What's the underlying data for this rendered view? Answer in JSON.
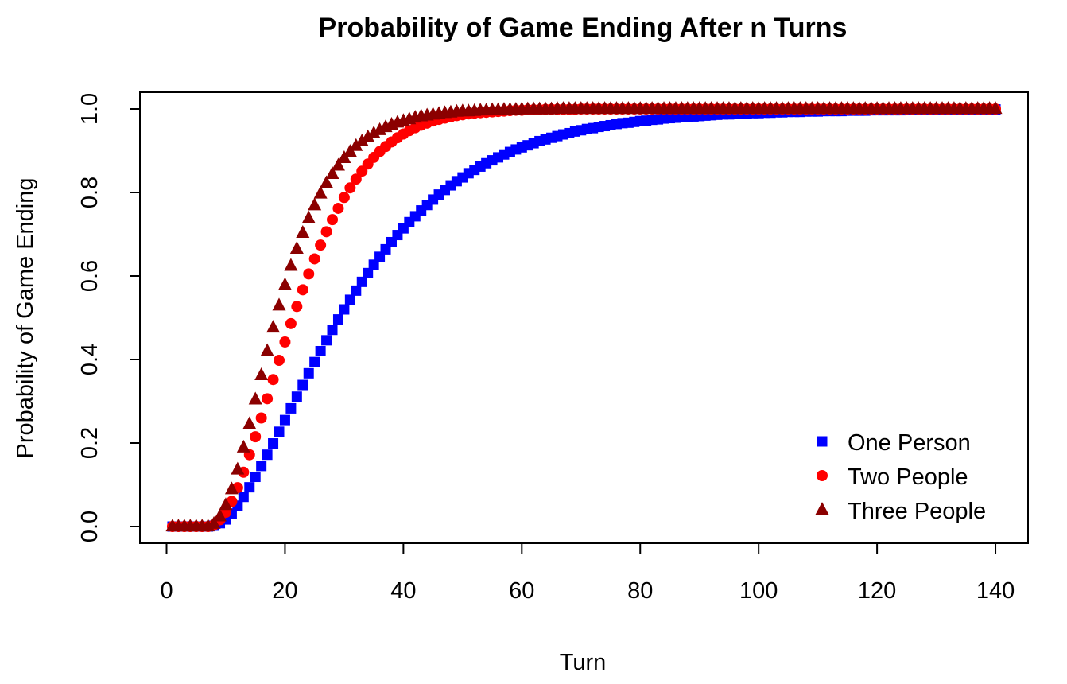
{
  "chart_data": {
    "type": "scatter",
    "title": "Probability of Game Ending After n Turns",
    "xlabel": "Turn",
    "ylabel": "Probability of Game Ending",
    "xlim": [
      -4.5,
      145.5
    ],
    "ylim": [
      -0.04,
      1.04
    ],
    "x_ticks": [
      0,
      20,
      40,
      60,
      80,
      100,
      120,
      140
    ],
    "y_ticks": [
      0.0,
      0.2,
      0.4,
      0.6,
      0.8,
      1.0
    ],
    "x_tick_labels": [
      "0",
      "20",
      "40",
      "60",
      "80",
      "100",
      "120",
      "140"
    ],
    "y_tick_labels": [
      "0.0",
      "0.2",
      "0.4",
      "0.6",
      "0.8",
      "1.0"
    ],
    "x": [
      1,
      2,
      3,
      4,
      5,
      6,
      7,
      8,
      9,
      10,
      11,
      12,
      13,
      14,
      15,
      16,
      17,
      18,
      19,
      20,
      21,
      22,
      23,
      24,
      25,
      26,
      27,
      28,
      29,
      30,
      31,
      32,
      33,
      34,
      35,
      36,
      37,
      38,
      39,
      40,
      41,
      42,
      43,
      44,
      45,
      46,
      47,
      48,
      49,
      50,
      51,
      52,
      53,
      54,
      55,
      56,
      57,
      58,
      59,
      60,
      61,
      62,
      63,
      64,
      65,
      66,
      67,
      68,
      69,
      70,
      71,
      72,
      73,
      74,
      75,
      76,
      77,
      78,
      79,
      80,
      81,
      82,
      83,
      84,
      85,
      86,
      87,
      88,
      89,
      90,
      91,
      92,
      93,
      94,
      95,
      96,
      97,
      98,
      99,
      100,
      101,
      102,
      103,
      104,
      105,
      106,
      107,
      108,
      109,
      110,
      111,
      112,
      113,
      114,
      115,
      116,
      117,
      118,
      119,
      120,
      121,
      122,
      123,
      124,
      125,
      126,
      127,
      128,
      129,
      130,
      131,
      132,
      133,
      134,
      135,
      136,
      137,
      138,
      139,
      140
    ],
    "series": [
      {
        "name": "One Person",
        "color": "#0000FF",
        "marker": "square",
        "values": [
          0.0,
          0.0,
          0.0,
          0.0,
          0.0,
          0.0,
          0.0,
          0.002,
          0.008,
          0.017,
          0.031,
          0.05,
          0.071,
          0.094,
          0.119,
          0.145,
          0.172,
          0.199,
          0.227,
          0.255,
          0.283,
          0.311,
          0.339,
          0.367,
          0.394,
          0.42,
          0.446,
          0.471,
          0.496,
          0.52,
          0.543,
          0.565,
          0.586,
          0.607,
          0.627,
          0.646,
          0.664,
          0.681,
          0.698,
          0.714,
          0.729,
          0.743,
          0.757,
          0.77,
          0.783,
          0.795,
          0.806,
          0.817,
          0.827,
          0.836,
          0.846,
          0.854,
          0.862,
          0.87,
          0.877,
          0.884,
          0.891,
          0.897,
          0.903,
          0.908,
          0.913,
          0.918,
          0.923,
          0.927,
          0.931,
          0.935,
          0.939,
          0.942,
          0.946,
          0.949,
          0.952,
          0.954,
          0.957,
          0.959,
          0.961,
          0.964,
          0.966,
          0.967,
          0.969,
          0.971,
          0.972,
          0.974,
          0.975,
          0.977,
          0.978,
          0.979,
          0.98,
          0.981,
          0.982,
          0.983,
          0.984,
          0.985,
          0.986,
          0.987,
          0.987,
          0.988,
          0.989,
          0.989,
          0.99,
          0.99,
          0.991,
          0.991,
          0.992,
          0.992,
          0.993,
          0.993,
          0.993,
          0.994,
          0.994,
          0.994,
          0.995,
          0.995,
          0.995,
          0.995,
          0.996,
          0.996,
          0.996,
          0.996,
          0.997,
          0.997,
          0.997,
          0.997,
          0.997,
          0.997,
          0.998,
          0.998,
          0.998,
          0.998,
          0.998,
          0.998,
          0.998,
          0.998,
          0.999,
          0.999,
          0.999,
          0.999,
          0.999,
          0.999,
          0.999,
          0.999
        ]
      },
      {
        "name": "Two People",
        "color": "#FF0000",
        "marker": "circle",
        "values": [
          0.0,
          0.0,
          0.0,
          0.0,
          0.0,
          0.0,
          0.0,
          0.004,
          0.016,
          0.034,
          0.06,
          0.093,
          0.13,
          0.172,
          0.215,
          0.26,
          0.306,
          0.352,
          0.398,
          0.442,
          0.486,
          0.527,
          0.567,
          0.605,
          0.641,
          0.674,
          0.706,
          0.735,
          0.762,
          0.788,
          0.811,
          0.832,
          0.851,
          0.868,
          0.884,
          0.898,
          0.91,
          0.921,
          0.931,
          0.94,
          0.948,
          0.955,
          0.961,
          0.966,
          0.971,
          0.975,
          0.978,
          0.981,
          0.984,
          0.986,
          0.988,
          0.99,
          0.991,
          0.992,
          0.993,
          0.994,
          0.995,
          0.996,
          0.997,
          0.997,
          0.998,
          0.998,
          0.998,
          0.999,
          0.999,
          0.999,
          0.999,
          0.999,
          0.999,
          1.0,
          1.0,
          1.0,
          1.0,
          1.0,
          1.0,
          1.0,
          1.0,
          1.0,
          1.0,
          1.0,
          1.0,
          1.0,
          1.0,
          1.0,
          1.0,
          1.0,
          1.0,
          1.0,
          1.0,
          1.0,
          1.0,
          1.0,
          1.0,
          1.0,
          1.0,
          1.0,
          1.0,
          1.0,
          1.0,
          1.0,
          1.0,
          1.0,
          1.0,
          1.0,
          1.0,
          1.0,
          1.0,
          1.0,
          1.0,
          1.0,
          1.0,
          1.0,
          1.0,
          1.0,
          1.0,
          1.0,
          1.0,
          1.0,
          1.0,
          1.0,
          1.0,
          1.0,
          1.0,
          1.0,
          1.0,
          1.0,
          1.0,
          1.0,
          1.0,
          1.0,
          1.0,
          1.0,
          1.0,
          1.0,
          1.0,
          1.0,
          1.0,
          1.0,
          1.0,
          1.0
        ]
      },
      {
        "name": "Three People",
        "color": "#8B0000",
        "marker": "triangle",
        "values": [
          0.0,
          0.0,
          0.0,
          0.0,
          0.0,
          0.0,
          0.0,
          0.006,
          0.024,
          0.051,
          0.089,
          0.136,
          0.189,
          0.245,
          0.304,
          0.362,
          0.42,
          0.476,
          0.529,
          0.578,
          0.624,
          0.665,
          0.703,
          0.738,
          0.769,
          0.797,
          0.822,
          0.844,
          0.864,
          0.882,
          0.897,
          0.911,
          0.922,
          0.932,
          0.941,
          0.949,
          0.956,
          0.962,
          0.967,
          0.971,
          0.975,
          0.979,
          0.982,
          0.984,
          0.986,
          0.988,
          0.99,
          0.991,
          0.993,
          0.994,
          0.994,
          0.995,
          0.996,
          0.996,
          0.997,
          0.997,
          0.998,
          0.998,
          0.998,
          0.999,
          0.999,
          0.999,
          0.999,
          0.999,
          0.999,
          1.0,
          1.0,
          1.0,
          1.0,
          1.0,
          1.0,
          1.0,
          1.0,
          1.0,
          1.0,
          1.0,
          1.0,
          1.0,
          1.0,
          1.0,
          1.0,
          1.0,
          1.0,
          1.0,
          1.0,
          1.0,
          1.0,
          1.0,
          1.0,
          1.0,
          1.0,
          1.0,
          1.0,
          1.0,
          1.0,
          1.0,
          1.0,
          1.0,
          1.0,
          1.0,
          1.0,
          1.0,
          1.0,
          1.0,
          1.0,
          1.0,
          1.0,
          1.0,
          1.0,
          1.0,
          1.0,
          1.0,
          1.0,
          1.0,
          1.0,
          1.0,
          1.0,
          1.0,
          1.0,
          1.0,
          1.0,
          1.0,
          1.0,
          1.0,
          1.0,
          1.0,
          1.0,
          1.0,
          1.0,
          1.0,
          1.0,
          1.0,
          1.0,
          1.0,
          1.0,
          1.0,
          1.0,
          1.0,
          1.0,
          1.0
        ]
      }
    ],
    "legend_position": "bottom-right",
    "grid": false
  }
}
